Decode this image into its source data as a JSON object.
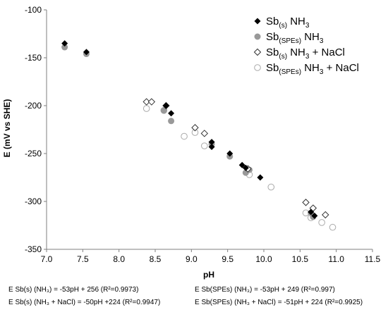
{
  "chart_data": {
    "type": "scatter",
    "xlabel": "pH",
    "ylabel": "E (mV vs SHE)",
    "xlim": [
      7.0,
      11.5
    ],
    "ylim": [
      -350,
      -100
    ],
    "xticks": [
      "7.0",
      "7.5",
      "8.0",
      "8.5",
      "9.0",
      "9.5",
      "10.0",
      "10.5",
      "11.0",
      "11.5"
    ],
    "yticks": [
      "-100",
      "-150",
      "-200",
      "-250",
      "-300",
      "-350"
    ],
    "grid": false,
    "legend_position": "top-right",
    "series": [
      {
        "marker": "diamond-filled",
        "color": "#000000",
        "legend": {
          "base": "Sb",
          "sub": "(s)",
          "mid": " NH",
          "sub2": "3",
          "tail": ""
        },
        "points": [
          [
            7.25,
            -135
          ],
          [
            7.55,
            -144
          ],
          [
            8.65,
            -200
          ],
          [
            8.72,
            -208
          ],
          [
            9.28,
            -238
          ],
          [
            9.28,
            -243
          ],
          [
            9.53,
            -250
          ],
          [
            9.7,
            -262
          ],
          [
            9.75,
            -265
          ],
          [
            9.95,
            -275
          ],
          [
            10.65,
            -311
          ],
          [
            10.7,
            -315
          ]
        ]
      },
      {
        "marker": "circle-filled",
        "color": "#999999",
        "legend": {
          "base": "Sb",
          "sub": "(SPEs)",
          "mid": " NH",
          "sub2": "3",
          "tail": ""
        },
        "points": [
          [
            7.25,
            -139
          ],
          [
            7.55,
            -146
          ],
          [
            8.62,
            -205
          ],
          [
            8.72,
            -216
          ],
          [
            9.28,
            -240
          ],
          [
            9.53,
            -253
          ],
          [
            9.75,
            -270
          ],
          [
            9.8,
            -267
          ],
          [
            10.65,
            -312
          ],
          [
            10.68,
            -316
          ]
        ]
      },
      {
        "marker": "diamond-open",
        "color": "#333333",
        "legend": {
          "base": "Sb",
          "sub": "(s)",
          "mid": " NH",
          "sub2": "3",
          "tail": " + NaCl"
        },
        "points": [
          [
            8.38,
            -196
          ],
          [
            8.45,
            -196
          ],
          [
            8.65,
            -200
          ],
          [
            9.05,
            -223
          ],
          [
            9.18,
            -229
          ],
          [
            9.78,
            -266
          ],
          [
            10.58,
            -301
          ],
          [
            10.68,
            -307
          ],
          [
            10.85,
            -314
          ]
        ]
      },
      {
        "marker": "circle-open",
        "color": "#aaaaaa",
        "legend": {
          "base": "Sb",
          "sub": "(SPEs)",
          "mid": " NH",
          "sub2": "3",
          "tail": " + NaCl"
        },
        "points": [
          [
            8.38,
            -203
          ],
          [
            8.62,
            -205
          ],
          [
            8.9,
            -232
          ],
          [
            9.05,
            -228
          ],
          [
            9.18,
            -242
          ],
          [
            9.8,
            -272
          ],
          [
            10.1,
            -285
          ],
          [
            10.58,
            -312
          ],
          [
            10.65,
            -317
          ],
          [
            10.8,
            -322
          ],
          [
            10.95,
            -327
          ]
        ]
      }
    ]
  },
  "equations": [
    "E Sb(s) (NH₃) = -53pH + 256 (R²=0.9973)",
    "E Sb(SPEs) (NH₃) = -53pH + 249 (R²=0.997)",
    "E Sb(s) (NH₃ + NaCl) = -50pH +224 (R²=0.9947)",
    "E Sb(SPEs) (NH₃ + NaCl) = -51pH + 224 (R²=0.9925)"
  ]
}
